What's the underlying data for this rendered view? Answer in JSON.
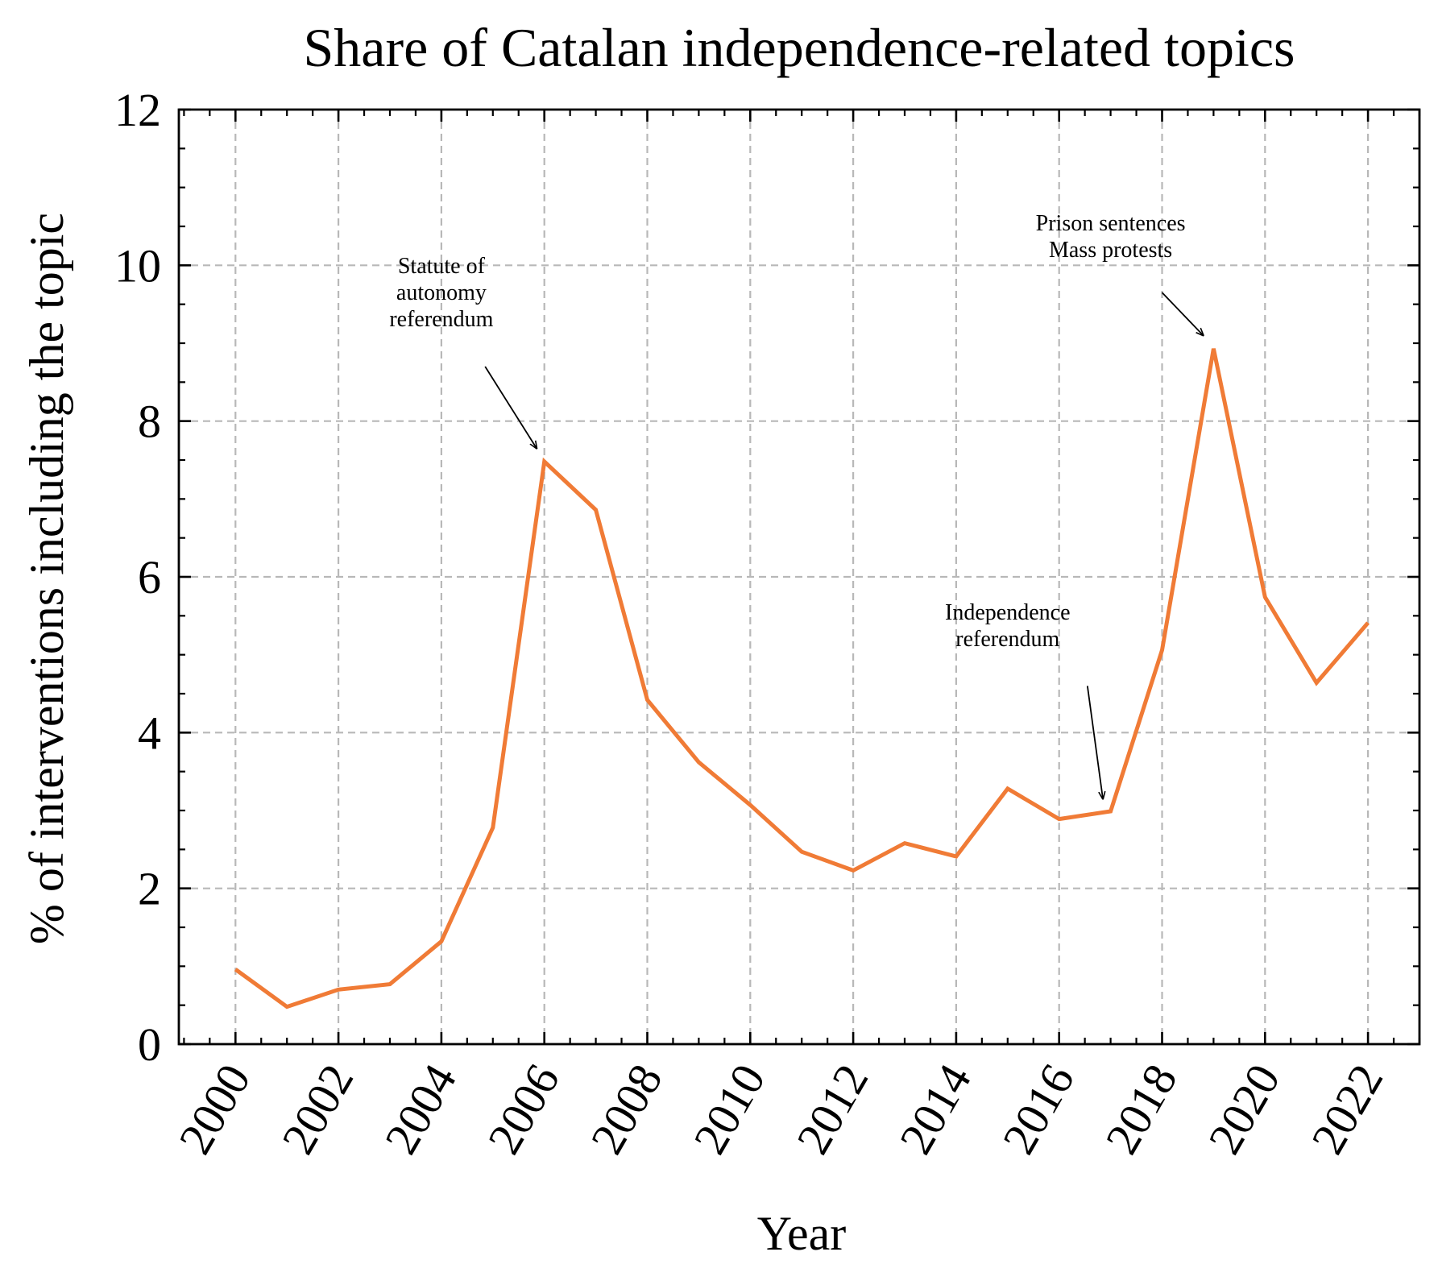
{
  "chart_data": {
    "type": "line",
    "title": "Share of Catalan independence-related topics",
    "xlabel": "Year",
    "ylabel": "% of interventions including the topic",
    "xlim": [
      1998.9,
      2023.0
    ],
    "ylim": [
      0,
      12
    ],
    "xticks": [
      2000,
      2002,
      2004,
      2006,
      2008,
      2010,
      2012,
      2014,
      2016,
      2018,
      2020,
      2022
    ],
    "yticks": [
      0,
      2,
      4,
      6,
      8,
      10,
      12
    ],
    "grid": true,
    "line_color": "#f07b36",
    "series": [
      {
        "x": [
          2000,
          2001,
          2002,
          2003,
          2004,
          2005,
          2006,
          2007,
          2008,
          2009,
          2010,
          2011,
          2012,
          2013,
          2014,
          2015,
          2016,
          2017,
          2018,
          2019,
          2020,
          2021,
          2022
        ],
        "values": [
          0.96,
          0.48,
          0.7,
          0.77,
          1.32,
          2.78,
          7.48,
          6.86,
          4.42,
          3.62,
          3.07,
          2.47,
          2.23,
          2.58,
          2.41,
          3.28,
          2.89,
          2.99,
          5.06,
          8.93,
          5.74,
          4.64,
          5.41
        ]
      }
    ],
    "annotations": [
      {
        "lines": [
          "Statute of",
          "autonomy",
          "referendum"
        ],
        "text_x": 2004.0,
        "text_y": 9.9,
        "arrow_from": [
          2004.85,
          8.7
        ],
        "arrow_to": [
          2005.85,
          7.65
        ]
      },
      {
        "lines": [
          "Independence",
          "referendum"
        ],
        "text_x": 2015.0,
        "text_y": 5.45,
        "arrow_from": [
          2016.55,
          4.6
        ],
        "arrow_to": [
          2016.85,
          3.15
        ]
      },
      {
        "lines": [
          "Prison sentences",
          "Mass protests"
        ],
        "text_x": 2017.0,
        "text_y": 10.45,
        "arrow_from": [
          2018.0,
          9.65
        ],
        "arrow_to": [
          2018.8,
          9.1
        ]
      }
    ]
  }
}
